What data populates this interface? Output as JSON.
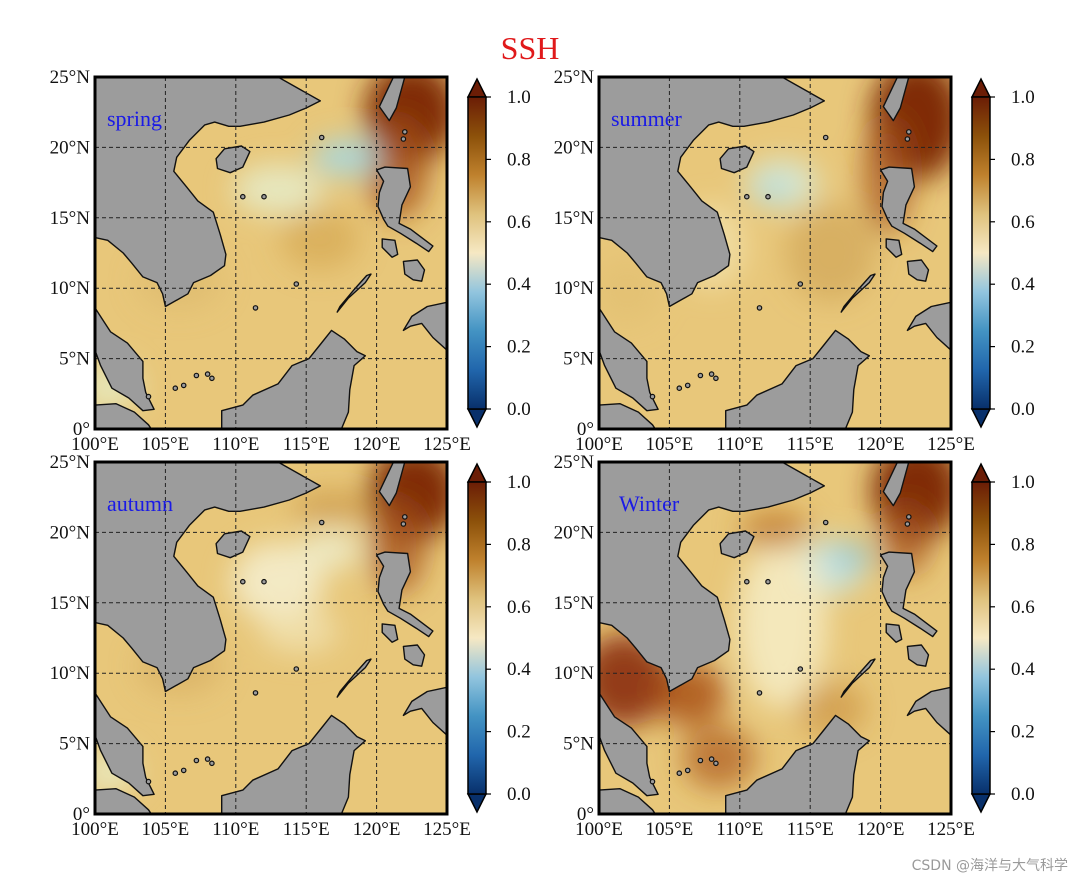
{
  "title": "SSH",
  "title_color": "#e0191b",
  "season_label_color": "#1a1ae6",
  "land_color": "#9c9c9c",
  "panels": [
    {
      "season": "spring"
    },
    {
      "season": "summer"
    },
    {
      "season": "autumn"
    },
    {
      "season": "Winter"
    }
  ],
  "axes": {
    "lon_ticks": [
      "100°E",
      "105°E",
      "110°E",
      "115°E",
      "120°E",
      "125°E"
    ],
    "lat_ticks": [
      "0°",
      "5°N",
      "10°N",
      "15°N",
      "20°N",
      "25°N"
    ],
    "lon_range": [
      100,
      125
    ],
    "lat_range": [
      0,
      25
    ],
    "grid": "dashed"
  },
  "colorbar": {
    "ticks": [
      "0.0",
      "0.2",
      "0.4",
      "0.6",
      "0.8",
      "1.0"
    ],
    "range": [
      0,
      1
    ],
    "extend": "both",
    "colors": [
      "#08306b",
      "#2166ac",
      "#4393c3",
      "#92c5de",
      "#f6e8c3",
      "#dfc27d",
      "#bf812d",
      "#8c510a",
      "#6b1d06"
    ]
  },
  "watermark": "CSDN @海洋与大气科学"
}
